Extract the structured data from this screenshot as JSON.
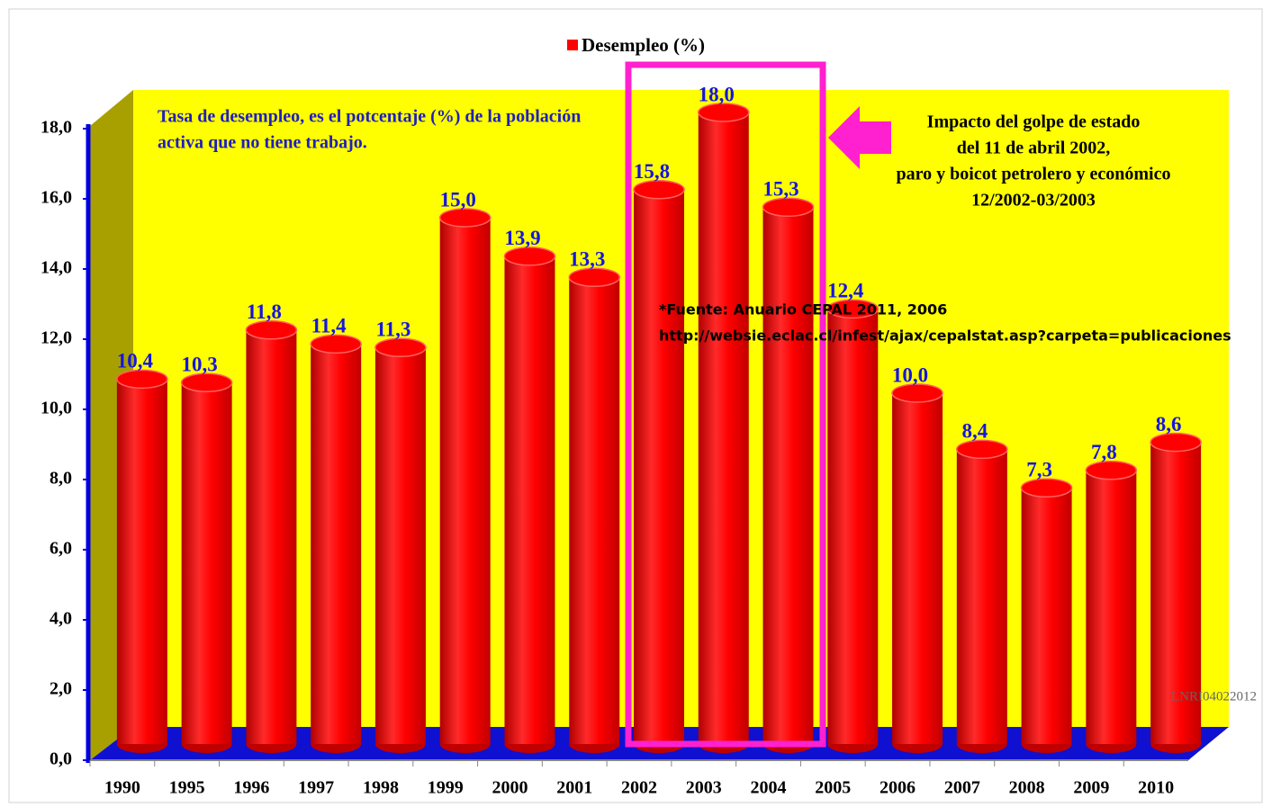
{
  "chart_data": {
    "type": "bar",
    "categories": [
      "1990",
      "1995",
      "1996",
      "1997",
      "1998",
      "1999",
      "2000",
      "2001",
      "2002",
      "2003",
      "2004",
      "2005",
      "2006",
      "2007",
      "2008",
      "2009",
      "2010"
    ],
    "series": [
      {
        "name": "Desempleo (%)",
        "color": "#ff0000",
        "values": [
          10.4,
          10.3,
          11.8,
          11.4,
          11.3,
          15.0,
          13.9,
          13.3,
          15.8,
          18.0,
          15.3,
          12.4,
          10.0,
          8.4,
          7.3,
          7.8,
          8.6
        ],
        "value_labels": [
          "10,4",
          "10,3",
          "11,8",
          "11,4",
          "11,3",
          "15,0",
          "13,9",
          "13,3",
          "15,8",
          "18,0",
          "15,3",
          "12,4",
          "10,0",
          "8,4",
          "7,3",
          "7,8",
          "8,6"
        ]
      }
    ],
    "ylim": [
      0,
      18
    ],
    "yticks": [
      {
        "value": 0,
        "label": "0,0"
      },
      {
        "value": 2,
        "label": "2,0"
      },
      {
        "value": 4,
        "label": "4,0"
      },
      {
        "value": 6,
        "label": "6,0"
      },
      {
        "value": 8,
        "label": "8,0"
      },
      {
        "value": 10,
        "label": "10,0"
      },
      {
        "value": 12,
        "label": "12,0"
      },
      {
        "value": 14,
        "label": "14,0"
      },
      {
        "value": 16,
        "label": "16,0"
      },
      {
        "value": 18,
        "label": "18,0"
      }
    ],
    "legend": "top",
    "grid": false,
    "annotations": {
      "description": [
        "Tasa de desempleo,  es el potcentaje (%) de la población",
        "activa que no tiene trabajo."
      ],
      "impact": [
        "Impacto del golpe de estado",
        "del 11 de abril 2002,",
        "paro y boicot petrolero y económico",
        "12/2002-03/2003"
      ],
      "source": [
        "*Fuente: Anuario CEPAL 2011, 2006",
        "http://websie.eclac.cl/infest/ajax/cepalstat.asp?carpeta=publicaciones"
      ],
      "signature": "LNRI04022012"
    }
  }
}
